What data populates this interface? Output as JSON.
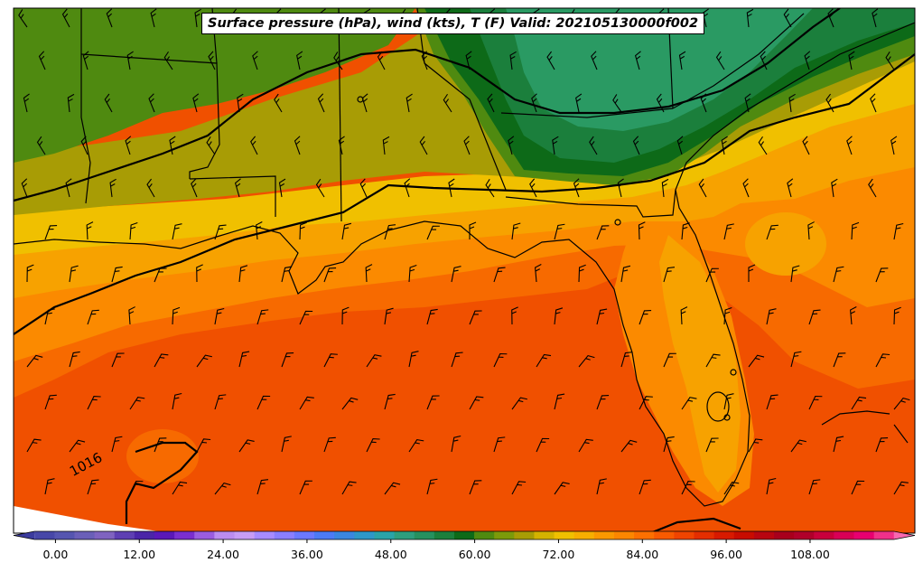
{
  "title": "Surface pressure (hPa), wind (kts), T (F) Valid: 202105130000f002",
  "contour_labels": [
    {
      "text": "1016",
      "rotate": -28
    }
  ],
  "colorbar": {
    "tick_labels": [
      "0.00",
      "12.00",
      "24.00",
      "36.00",
      "48.00",
      "60.00",
      "72.00",
      "84.00",
      "96.00",
      "108.00"
    ],
    "tick_values": [
      0,
      12,
      24,
      36,
      48,
      60,
      72,
      84,
      96,
      108
    ],
    "range": [
      -6,
      123
    ],
    "step": 3,
    "colors": [
      "#3b3b9e",
      "#4747a8",
      "#5555b0",
      "#6a5fb8",
      "#7f63c0",
      "#5e3fb3",
      "#4a25a8",
      "#5a18b8",
      "#7a2ecf",
      "#9a5ce0",
      "#bb8cf0",
      "#c79cf5",
      "#a78bff",
      "#8a7eff",
      "#6b78ff",
      "#4c7af5",
      "#3a86e0",
      "#2e97c8",
      "#2aa3a8",
      "#2e9e7e",
      "#26915f",
      "#1b7f3c",
      "#0d6a18",
      "#4f8a10",
      "#7c9a0a",
      "#a89c05",
      "#d4b200",
      "#f0c000",
      "#f7ae00",
      "#fb9800",
      "#fc8600",
      "#fc7000",
      "#f85a00",
      "#f04400",
      "#e42e00",
      "#d81a00",
      "#c80c00",
      "#b80510",
      "#a8001c",
      "#b0002a",
      "#c8003c",
      "#d90056",
      "#e80070",
      "#f0308a",
      "#f868b0"
    ]
  },
  "fill_colors": {
    "temp_45": "#2a9a63",
    "temp_51": "#0d6a18",
    "temp_57": "#4f8a10",
    "temp_63": "#a89c05",
    "temp_66": "#f0c000",
    "temp_69": "#f7a200",
    "temp_72": "#fb8a00",
    "temp_75": "#f76a00",
    "temp_78": "#f05000",
    "temp_81": "#e43800",
    "missing": "#ffffff"
  },
  "legend_units": "T (F)"
}
